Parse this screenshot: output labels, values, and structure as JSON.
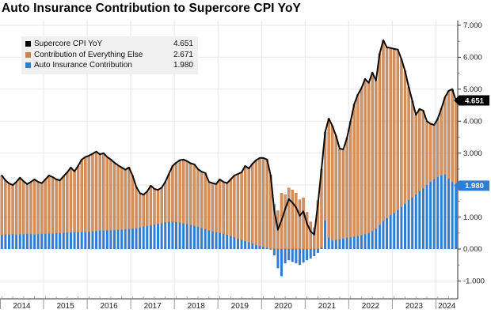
{
  "title": "Auto Insurance Contribution to Supercore CPI YoY",
  "legend": {
    "entries": [
      {
        "label": "Supercore CPI YoY",
        "value": "4.651",
        "color": "#000000"
      },
      {
        "label": "Contribution of Everything Else",
        "value": "2.671",
        "color": "#c9854f"
      },
      {
        "label": "Auto Insurance Contribution",
        "value": "1.980",
        "color": "#2f7ed3"
      }
    ]
  },
  "badges": [
    {
      "text": "4.651",
      "value": 4.651,
      "bg": "#000000",
      "fg": "#ffffff"
    },
    {
      "text": "1.980",
      "value": 1.98,
      "bg": "#2f7ed3",
      "fg": "#ffffff"
    }
  ],
  "colors": {
    "background": "#ffffff",
    "grid": "#e7e7e7",
    "axis": "#333333",
    "tick_minor": "#666666",
    "year_tick": "#999999",
    "orange_bar": "#d4915f",
    "orange_edge": "#b06f3f",
    "blue_bar": "#2f7ed3",
    "line": "#0a0a0a",
    "axis_text": "#1a1a1a"
  },
  "chart_data": {
    "type": "combo (stacked bar + line)",
    "frequency": "monthly",
    "x_start": "2014-01",
    "x_end": "2024-06",
    "x_year_labels": [
      "2014",
      "2015",
      "2016",
      "2017",
      "2018",
      "2019",
      "2020",
      "2021",
      "2022",
      "2023",
      "2024"
    ],
    "y_axis": {
      "side": "right",
      "min": -1.5,
      "max": 7.35,
      "tick_values": [
        7,
        6,
        5,
        4,
        3,
        2,
        1,
        0,
        -1
      ],
      "tick_labels": [
        "7.000",
        "6.000",
        "5.000",
        "4.000",
        "3.000",
        "2.000",
        "1.000",
        "0.000",
        "-1.000"
      ],
      "minor_tick_step": 0.5,
      "grid": true
    },
    "series": [
      {
        "name": "Auto Insurance Contribution",
        "type": "bar",
        "stack": "cpi",
        "color": "#2f7ed3",
        "values": [
          0.44,
          0.45,
          0.45,
          0.46,
          0.45,
          0.46,
          0.46,
          0.47,
          0.46,
          0.45,
          0.46,
          0.47,
          0.47,
          0.48,
          0.48,
          0.49,
          0.5,
          0.5,
          0.51,
          0.51,
          0.52,
          0.52,
          0.53,
          0.53,
          0.54,
          0.55,
          0.56,
          0.57,
          0.57,
          0.58,
          0.58,
          0.59,
          0.6,
          0.6,
          0.61,
          0.62,
          0.63,
          0.65,
          0.67,
          0.7,
          0.72,
          0.74,
          0.76,
          0.78,
          0.8,
          0.83,
          0.85,
          0.85,
          0.84,
          0.82,
          0.8,
          0.78,
          0.75,
          0.72,
          0.68,
          0.65,
          0.62,
          0.58,
          0.55,
          0.52,
          0.5,
          0.47,
          0.44,
          0.4,
          0.36,
          0.32,
          0.28,
          0.24,
          0.2,
          0.16,
          0.12,
          0.09,
          0.06,
          0.04,
          -0.02,
          -0.2,
          -0.6,
          -0.85,
          -0.45,
          -0.35,
          -0.4,
          -0.45,
          -0.5,
          -0.42,
          -0.35,
          -0.3,
          -0.22,
          -0.12,
          0.05,
          0.88,
          0.35,
          0.26,
          0.28,
          0.3,
          0.32,
          0.35,
          0.36,
          0.38,
          0.4,
          0.43,
          0.46,
          0.5,
          0.56,
          0.63,
          0.75,
          0.87,
          0.96,
          1.06,
          1.12,
          1.21,
          1.31,
          1.41,
          1.53,
          1.61,
          1.7,
          1.81,
          1.9,
          2.0,
          2.1,
          2.18,
          2.25,
          2.3,
          2.33,
          2.2,
          2.1,
          1.98
        ]
      },
      {
        "name": "Contribution of Everything Else",
        "type": "bar",
        "stack": "cpi",
        "color": "#d4915f",
        "derived": "supercore_minus_auto_insurance",
        "last_value": 2.671
      },
      {
        "name": "Supercore CPI YoY",
        "type": "line",
        "color": "#0a0a0a",
        "values": [
          2.3,
          2.15,
          2.05,
          2.0,
          2.1,
          2.23,
          2.12,
          2.03,
          2.1,
          2.18,
          2.1,
          2.06,
          2.18,
          2.3,
          2.25,
          2.18,
          2.15,
          2.28,
          2.4,
          2.55,
          2.43,
          2.6,
          2.8,
          2.88,
          2.92,
          2.98,
          3.05,
          2.96,
          3.0,
          2.88,
          2.8,
          2.7,
          2.62,
          2.55,
          2.48,
          2.55,
          2.3,
          1.95,
          1.75,
          1.7,
          1.8,
          1.98,
          1.88,
          1.85,
          1.92,
          2.1,
          2.35,
          2.6,
          2.7,
          2.78,
          2.8,
          2.75,
          2.68,
          2.65,
          2.5,
          2.42,
          2.38,
          2.1,
          2.06,
          2.03,
          2.18,
          2.1,
          2.06,
          2.18,
          2.3,
          2.35,
          2.4,
          2.6,
          2.52,
          2.67,
          2.78,
          2.85,
          2.85,
          2.8,
          2.3,
          1.2,
          0.6,
          0.9,
          1.25,
          1.56,
          1.45,
          1.3,
          1.04,
          1.18,
          0.8,
          0.55,
          0.45,
          1.4,
          2.5,
          3.66,
          4.08,
          3.85,
          3.54,
          3.14,
          3.12,
          3.47,
          4.0,
          4.53,
          4.83,
          5.03,
          5.32,
          5.2,
          5.52,
          5.27,
          6.11,
          6.53,
          6.31,
          6.29,
          6.26,
          6.24,
          5.94,
          5.57,
          5.07,
          4.63,
          4.2,
          4.38,
          4.33,
          4.0,
          3.92,
          3.88,
          4.08,
          4.4,
          4.75,
          4.95,
          5.0,
          4.651
        ]
      }
    ],
    "last_values": {
      "supercore": 4.651,
      "everything_else": 2.671,
      "auto_insurance": 1.98
    }
  }
}
